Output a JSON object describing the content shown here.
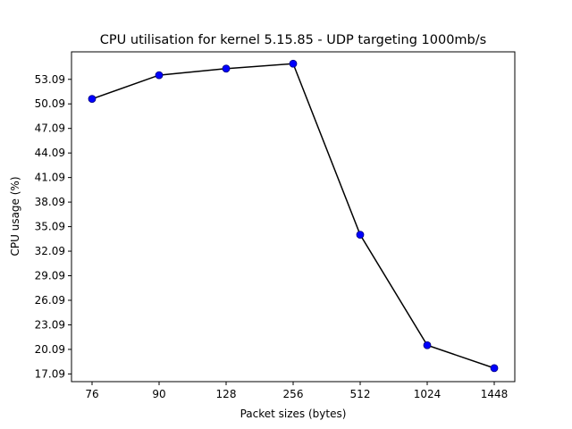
{
  "chart_data": {
    "type": "line",
    "title": "CPU utilisation for kernel 5.15.85 - UDP targeting 1000mb/s",
    "xlabel": "Packet sizes (bytes)",
    "ylabel": "CPU usage (%)",
    "categories": [
      "76",
      "90",
      "128",
      "256",
      "512",
      "1024",
      "1448"
    ],
    "series": [
      {
        "values": [
          50.7,
          53.6,
          54.4,
          55.0,
          34.1,
          20.6,
          17.8
        ]
      }
    ],
    "yticks": [
      "17.09",
      "20.09",
      "23.09",
      "26.09",
      "29.09",
      "32.09",
      "35.09",
      "38.09",
      "41.09",
      "44.09",
      "47.09",
      "50.09",
      "53.09"
    ],
    "ylim": [
      16.15,
      56.45
    ],
    "grid": false,
    "legend": "none",
    "colors": {
      "line": "#000000",
      "marker": "#0000ff",
      "marker_edge": "#00007a"
    }
  }
}
